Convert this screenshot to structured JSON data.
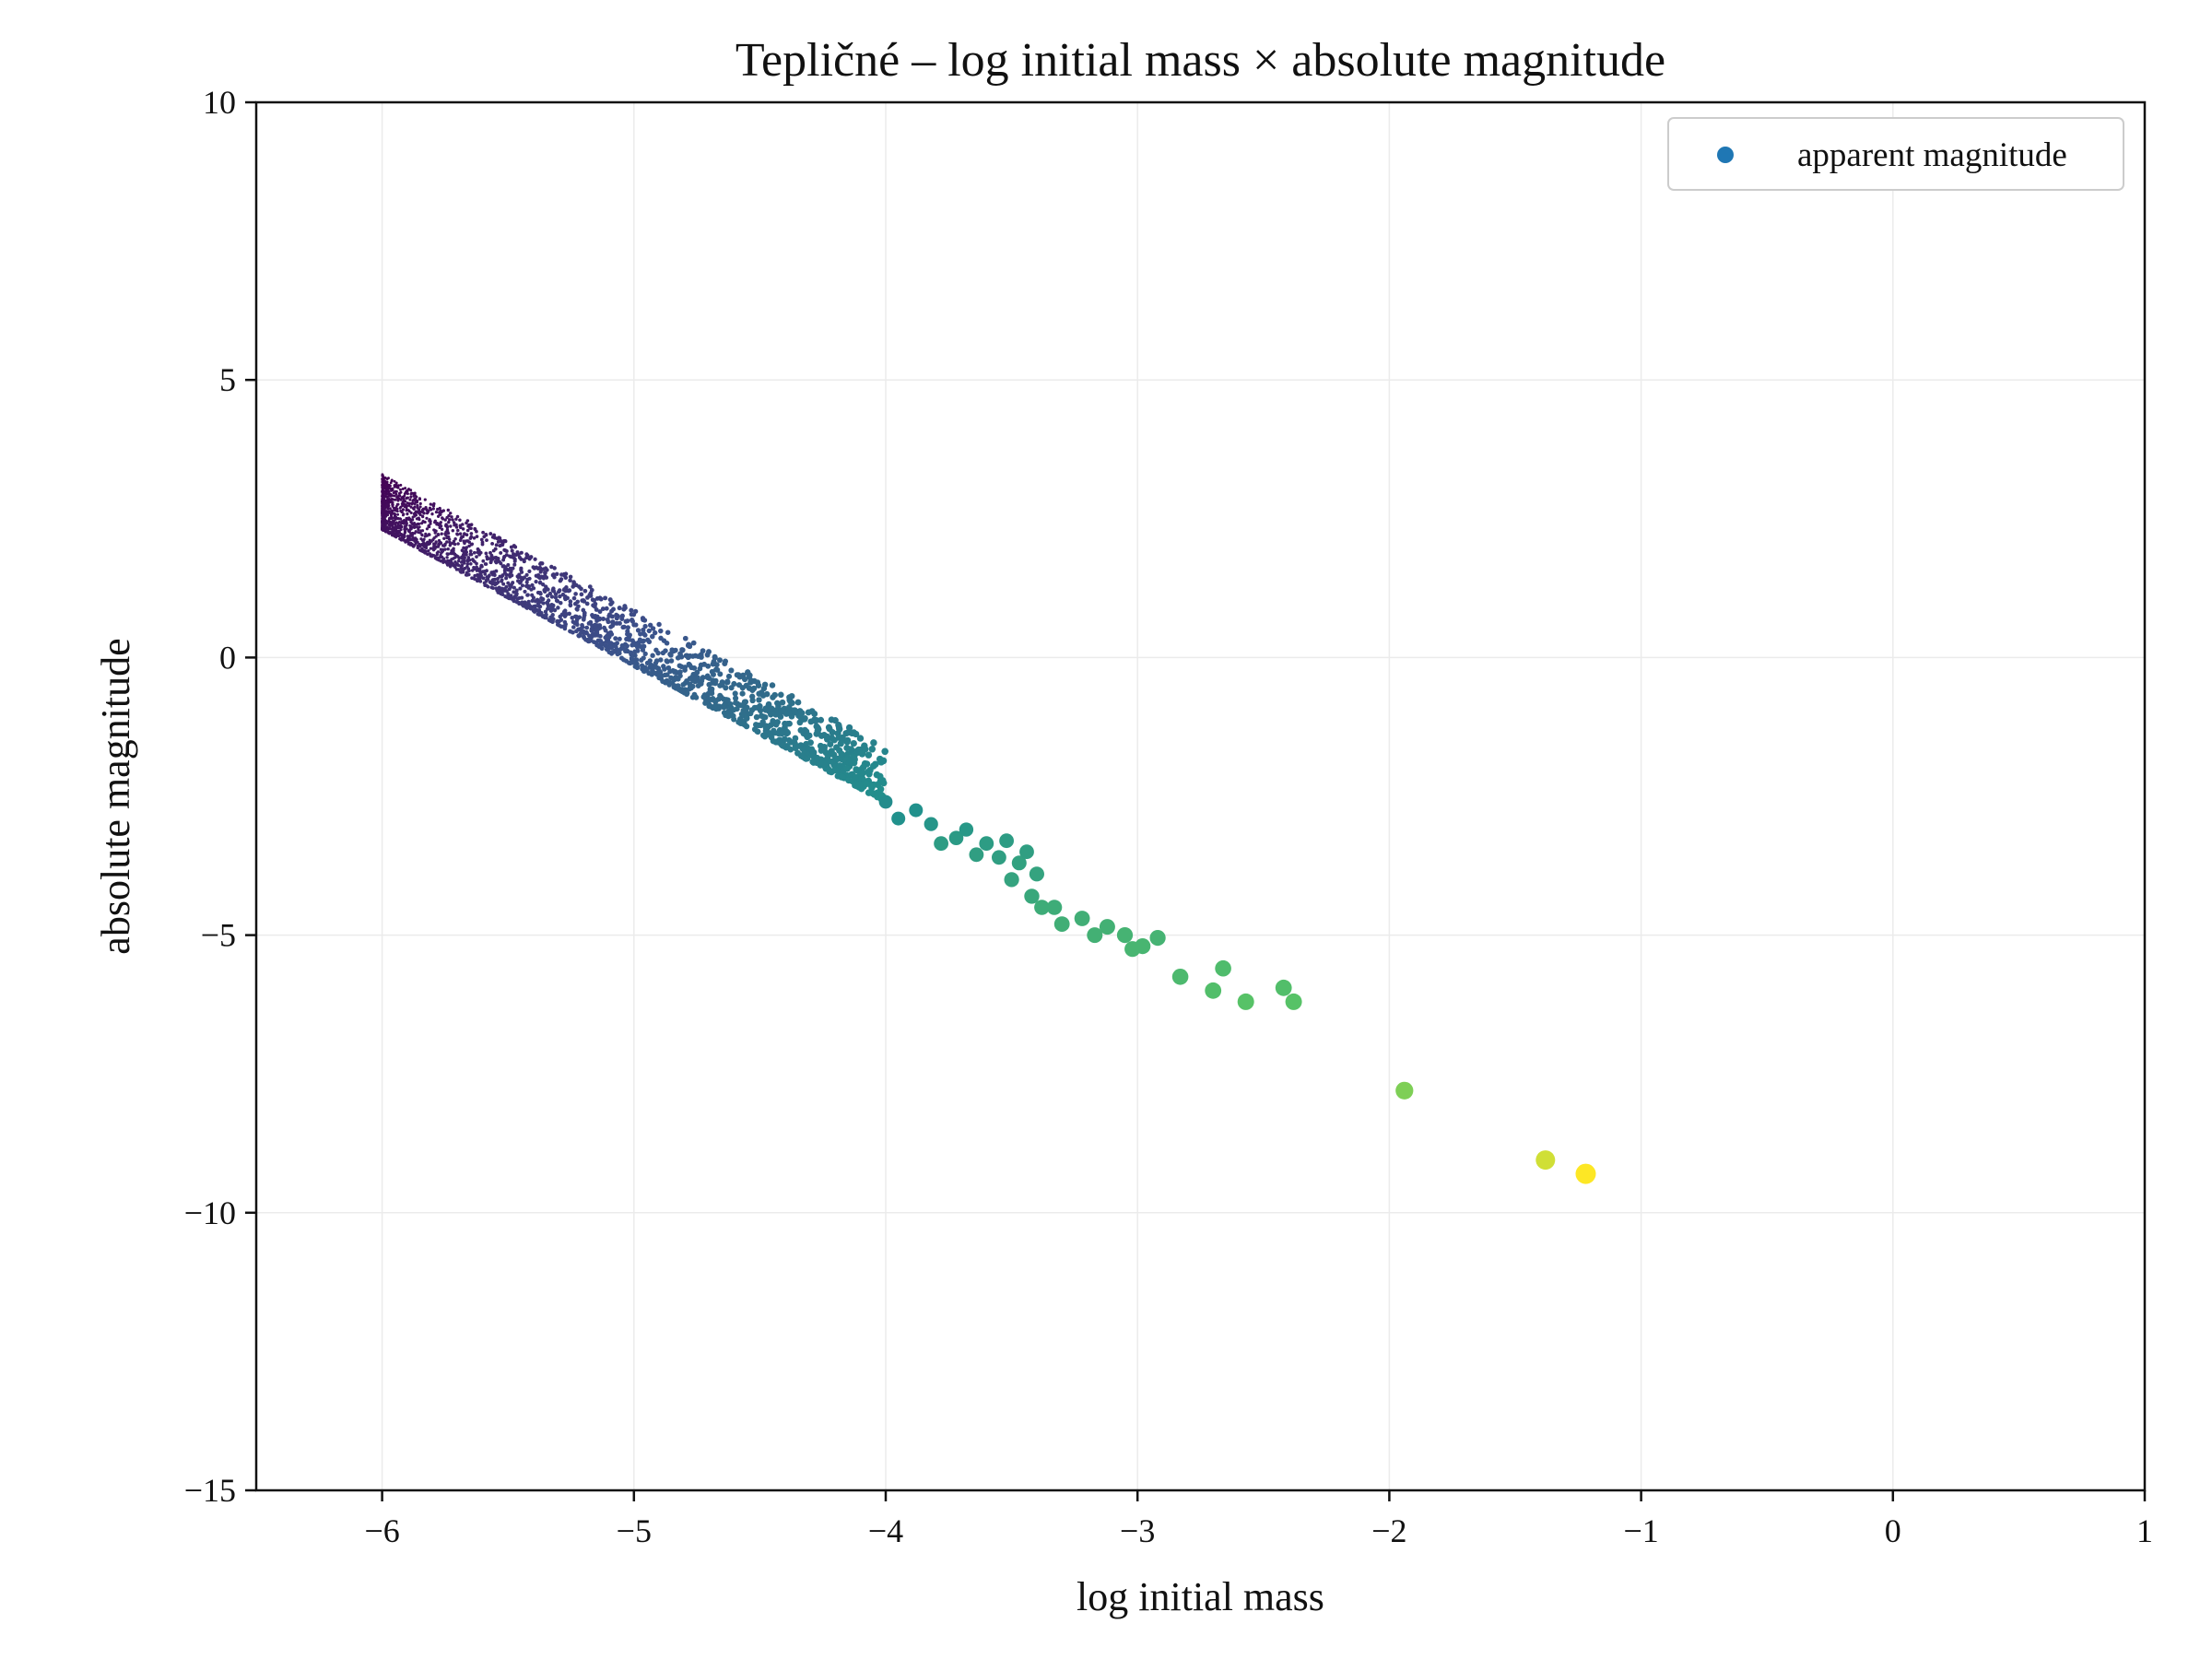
{
  "chart_data": {
    "type": "scatter",
    "title": "Tepličné – log initial mass × absolute magnitude",
    "xlabel": "log initial mass",
    "ylabel": "absolute magnitude",
    "xlim": [
      -6.5,
      1
    ],
    "ylim": [
      -15,
      10
    ],
    "xticks": [
      -6,
      -5,
      -4,
      -3,
      -2,
      -1,
      0,
      1
    ],
    "xtick_labels": [
      "−6",
      "−5",
      "−4",
      "−3",
      "−2",
      "−1",
      "0",
      "1"
    ],
    "yticks": [
      -15,
      -10,
      -5,
      0,
      5,
      10
    ],
    "ytick_labels": [
      "−15",
      "−10",
      "−5",
      "0",
      "5",
      "10"
    ],
    "grid": true,
    "legend": {
      "position": "top-right",
      "entries": [
        "apparent magnitude"
      ],
      "marker_color": "#1f77b4"
    },
    "colormap": "viridis",
    "colormap_colors": [
      "#440154",
      "#3b528b",
      "#21918c",
      "#5ec962",
      "#fde725"
    ],
    "cloud_region": {
      "x_range": [
        -6.0,
        -4.0
      ],
      "upper_edge": [
        [
          -6.0,
          3.3
        ],
        [
          -4.0,
          -1.6
        ]
      ],
      "lower_edge": [
        [
          -6.0,
          2.3
        ],
        [
          -4.0,
          -2.6
        ]
      ]
    },
    "series": [
      {
        "x": [
          -4.0,
          -3.95,
          -3.88,
          -3.82,
          -3.78,
          -3.72,
          -3.68,
          -3.64,
          -3.6,
          -3.55,
          -3.52,
          -3.5,
          -3.47,
          -3.44,
          -3.42,
          -3.4,
          -3.38,
          -3.33,
          -3.3,
          -3.22,
          -3.17,
          -3.12,
          -3.05,
          -3.02,
          -2.98,
          -2.92,
          -2.83,
          -2.7,
          -2.66,
          -2.57,
          -2.42,
          -2.38,
          -1.94,
          -1.38,
          -1.22
        ],
        "y": [
          -2.6,
          -2.9,
          -2.75,
          -3.0,
          -3.35,
          -3.25,
          -3.1,
          -3.55,
          -3.35,
          -3.6,
          -3.3,
          -4.0,
          -3.7,
          -3.5,
          -4.3,
          -3.9,
          -4.5,
          -4.5,
          -4.8,
          -4.7,
          -5.0,
          -4.85,
          -5.0,
          -5.25,
          -5.2,
          -5.05,
          -5.75,
          -6.0,
          -5.6,
          -6.2,
          -5.95,
          -6.2,
          -7.8,
          -9.05,
          -9.3
        ],
        "c": [
          0.48,
          0.5,
          0.5,
          0.52,
          0.55,
          0.54,
          0.53,
          0.56,
          0.55,
          0.56,
          0.55,
          0.58,
          0.57,
          0.56,
          0.6,
          0.58,
          0.62,
          0.62,
          0.63,
          0.63,
          0.64,
          0.64,
          0.65,
          0.66,
          0.66,
          0.65,
          0.68,
          0.7,
          0.69,
          0.72,
          0.7,
          0.72,
          0.8,
          0.93,
          1.0
        ]
      }
    ]
  }
}
